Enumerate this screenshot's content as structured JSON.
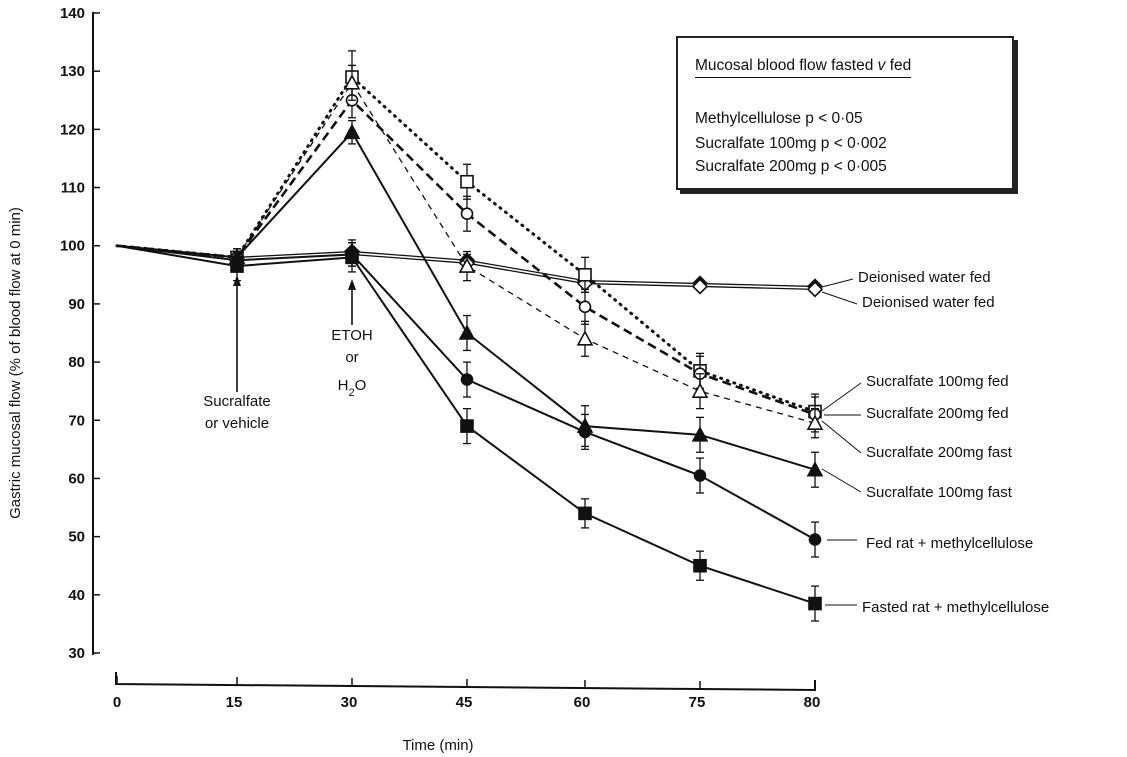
{
  "chart_data": {
    "type": "line",
    "xlabel": "Time (min)",
    "ylabel": "Gastric mucosal flow (% of blood flow at 0 min)",
    "x": [
      0,
      15,
      30,
      45,
      60,
      75,
      80
    ],
    "x_tick_labels": [
      "0",
      "15",
      "30",
      "45",
      "60",
      "75",
      "80"
    ],
    "ylim": [
      30,
      140
    ],
    "y_ticks": [
      30,
      40,
      50,
      60,
      70,
      80,
      90,
      100,
      110,
      120,
      130,
      140
    ],
    "grid": false,
    "series": [
      {
        "name": "Deionised water fed",
        "marker": "diamond-filled",
        "line": "solid-double",
        "values": [
          100,
          98,
          99,
          97.5,
          94,
          93.5,
          93
        ],
        "errors": [
          0,
          1.5,
          2,
          1,
          1.5,
          0,
          0.5
        ]
      },
      {
        "name": "Deionised water fed",
        "marker": "diamond-open",
        "line": "solid-double",
        "values": [
          100,
          97.5,
          98.5,
          97,
          93.5,
          93,
          92.5
        ],
        "errors": [
          0,
          1.5,
          2,
          1,
          1.5,
          0,
          0.5
        ]
      },
      {
        "name": "Sucralfate 100mg fed",
        "marker": "square-open",
        "line": "dotted",
        "values": [
          100,
          98,
          129,
          111,
          95,
          78.5,
          71.5
        ],
        "errors": [
          0,
          1.5,
          4.5,
          3,
          3,
          3,
          3
        ]
      },
      {
        "name": "Sucralfate 200mg fed",
        "marker": "circle-open",
        "line": "dashed-heavy",
        "values": [
          100,
          98,
          125,
          105.5,
          89.5,
          78,
          71
        ],
        "errors": [
          0,
          1.5,
          3,
          3,
          3,
          3,
          3
        ]
      },
      {
        "name": "Sucralfate 200mg fast",
        "marker": "triangle-open",
        "line": "dashed",
        "values": [
          100,
          98,
          128,
          96.5,
          84,
          75,
          69.5
        ],
        "errors": [
          0,
          1.5,
          3,
          2.5,
          3,
          3,
          2.5
        ]
      },
      {
        "name": "Sucralfate 100mg fast",
        "marker": "triangle-filled",
        "line": "solid",
        "values": [
          100,
          98,
          119.5,
          85,
          69,
          67.5,
          61.5
        ],
        "errors": [
          0,
          1.5,
          2,
          3,
          3.5,
          3,
          3
        ]
      },
      {
        "name": "Fed rat + methylcellulose",
        "marker": "circle-filled",
        "line": "solid",
        "values": [
          100,
          97.5,
          98.5,
          77,
          68,
          60.5,
          49.5
        ],
        "errors": [
          0,
          1.5,
          2,
          3,
          3,
          3,
          3
        ]
      },
      {
        "name": "Fasted rat + methylcellulose",
        "marker": "square-filled",
        "line": "solid",
        "values": [
          100,
          96.5,
          98,
          69,
          54,
          45,
          38.5
        ],
        "errors": [
          0,
          2.5,
          2.5,
          3,
          2.5,
          2.5,
          3
        ]
      }
    ],
    "annotations": [
      {
        "lines": [
          "Sucralfate",
          "or vehicle"
        ],
        "x": 15
      },
      {
        "lines": [
          "ETOH",
          "or",
          "H2O"
        ],
        "x": 30
      }
    ],
    "legend": {
      "title": "Mucosal blood flow fasted v fed",
      "lines": [
        "Methylcellulose p < 0·05",
        "Sucralfate 100mg p < 0·002",
        "Sucralfate 200mg p < 0·005"
      ],
      "placement": "top-right"
    }
  }
}
